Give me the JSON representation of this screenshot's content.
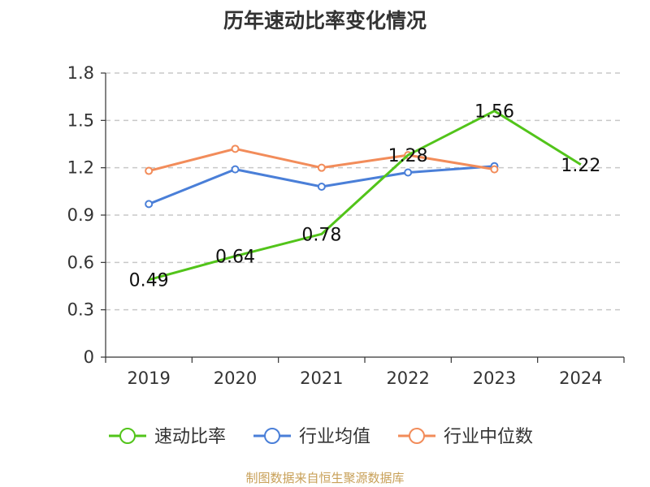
{
  "chart_data": {
    "type": "line",
    "title": "历年速动比率变化情况",
    "categories": [
      "2019",
      "2020",
      "2021",
      "2022",
      "2023",
      "2024"
    ],
    "ylim": [
      0,
      1.8
    ],
    "yticks": [
      0,
      0.3,
      0.6,
      0.9,
      1.2,
      1.5,
      1.8
    ],
    "ytick_labels": [
      "0",
      "0.3",
      "0.6",
      "0.9",
      "1.2",
      "1.5",
      "1.8"
    ],
    "grid": true,
    "legend_position": "bottom",
    "series": [
      {
        "name": "速动比率",
        "color": "#52c41a",
        "values": [
          0.49,
          0.64,
          0.78,
          1.28,
          1.56,
          1.22
        ],
        "labels": [
          "0.49",
          "0.64",
          "0.78",
          "1.28",
          "1.56",
          "1.22"
        ],
        "markers": false
      },
      {
        "name": "行业均值",
        "color": "#4a7fd8",
        "values": [
          0.97,
          1.19,
          1.08,
          1.17,
          1.21,
          null
        ],
        "markers": true
      },
      {
        "name": "行业中位数",
        "color": "#f28c5a",
        "values": [
          1.18,
          1.32,
          1.2,
          1.28,
          1.19,
          null
        ],
        "markers": true
      }
    ]
  },
  "footer": {
    "source": "制图数据来自恒生聚源数据库"
  }
}
